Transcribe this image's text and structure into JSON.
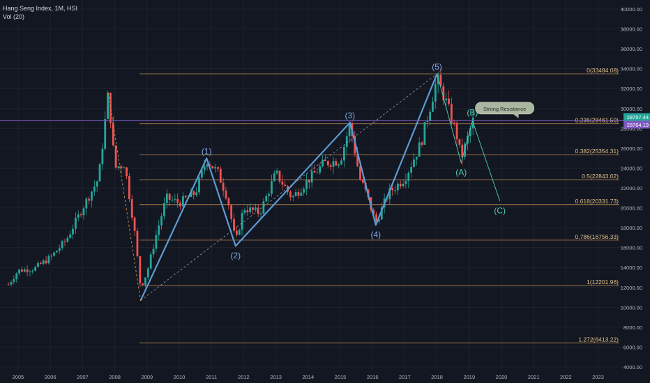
{
  "legend": {
    "symbol": "Hang Seng Index, 1M, HSI",
    "indicator": "Vol (20)"
  },
  "chart_data": {
    "type": "candlestick",
    "ylim": [
      4000,
      40000
    ],
    "xlim": [
      2004.7,
      2023.7
    ],
    "y_ticks": [
      4000,
      6000,
      8000,
      10000,
      12000,
      14000,
      16000,
      18000,
      20000,
      22000,
      24000,
      26000,
      28000,
      30000,
      32000,
      34000,
      36000,
      38000,
      40000
    ],
    "y_tick_labels": [
      "4000.00",
      "6000.00",
      "8000.00",
      "10000.00",
      "12000.00",
      "14000.00",
      "16000.00",
      "18000.00",
      "20000.00",
      "22000.00",
      "24000.00",
      "26000.00",
      "28000.00",
      "30000.00",
      "32000.00",
      "34000.00",
      "36000.00",
      "38000.00",
      "40000.00"
    ],
    "x_ticks": [
      2005,
      2006,
      2007,
      2008,
      2009,
      2010,
      2011,
      2012,
      2013,
      2014,
      2015,
      2016,
      2017,
      2018,
      2019,
      2020,
      2021,
      2022,
      2023
    ],
    "x_tick_labels": [
      "2005",
      "2006",
      "2007",
      "2008",
      "2009",
      "2010",
      "2011",
      "2012",
      "2013",
      "2014",
      "2015",
      "2016",
      "2017",
      "2018",
      "2019",
      "2020",
      "2021",
      "2022",
      "2023"
    ],
    "price_path": [
      [
        2004.7,
        12300
      ],
      [
        2005.0,
        13700
      ],
      [
        2005.5,
        13900
      ],
      [
        2006.0,
        15000
      ],
      [
        2006.5,
        16800
      ],
      [
        2007.0,
        20000
      ],
      [
        2007.5,
        23000
      ],
      [
        2007.8,
        31600
      ],
      [
        2008.0,
        24000
      ],
      [
        2008.3,
        24500
      ],
      [
        2008.6,
        18000
      ],
      [
        2008.8,
        12000
      ],
      [
        2009.0,
        13500
      ],
      [
        2009.3,
        17500
      ],
      [
        2009.6,
        21000
      ],
      [
        2010.0,
        20500
      ],
      [
        2010.5,
        21500
      ],
      [
        2010.85,
        24900
      ],
      [
        2011.2,
        23500
      ],
      [
        2011.5,
        21000
      ],
      [
        2011.75,
        16500
      ],
      [
        2012.0,
        20000
      ],
      [
        2012.5,
        19500
      ],
      [
        2013.0,
        23500
      ],
      [
        2013.5,
        21000
      ],
      [
        2014.0,
        22800
      ],
      [
        2014.5,
        24500
      ],
      [
        2015.0,
        24800
      ],
      [
        2015.3,
        28500
      ],
      [
        2015.6,
        23000
      ],
      [
        2015.8,
        21500
      ],
      [
        2016.1,
        18500
      ],
      [
        2016.5,
        21500
      ],
      [
        2017.0,
        23000
      ],
      [
        2017.5,
        26500
      ],
      [
        2018.0,
        33000
      ],
      [
        2018.3,
        30500
      ],
      [
        2018.6,
        27500
      ],
      [
        2018.75,
        25000
      ],
      [
        2019.0,
        27500
      ],
      [
        2019.1,
        28764
      ]
    ],
    "horizontal_line": {
      "value": 28764.19,
      "color": "#7e57c2"
    },
    "price_labels": [
      {
        "value": "28757.44",
        "color": "#26a69a"
      },
      {
        "value": "28764.19",
        "color": "#7e57c2"
      }
    ],
    "fib_levels": [
      {
        "value": 33484.08,
        "label": "0(33484.08)"
      },
      {
        "value": 28461.5,
        "label": "0.236(28461.50)"
      },
      {
        "value": 25354.31,
        "label": "0.382(25354.31)"
      },
      {
        "value": 22843.02,
        "label": "0.5(22843.02)"
      },
      {
        "value": 20331.73,
        "label": "0.618(20331.73)"
      },
      {
        "value": 16756.33,
        "label": "0.786(16756.33)"
      },
      {
        "value": 12201.96,
        "label": "1(12201.96)"
      },
      {
        "value": 6413.22,
        "label": "1.272(6413.22)"
      }
    ],
    "fib_color": "#e0a15a",
    "wave_points": [
      {
        "label": "",
        "x": 2008.8,
        "y": 10676
      },
      {
        "label": "(1)",
        "x": 2010.85,
        "y": 24988
      },
      {
        "label": "(2)",
        "x": 2011.75,
        "y": 16170
      },
      {
        "label": "(3)",
        "x": 2015.3,
        "y": 28588
      },
      {
        "label": "(4)",
        "x": 2016.1,
        "y": 18278
      },
      {
        "label": "(5)",
        "x": 2018.0,
        "y": 33484
      }
    ],
    "correction_points": [
      {
        "label": "(A)",
        "x": 2018.75,
        "y": 24540
      },
      {
        "label": "(B)",
        "x": 2019.1,
        "y": 28764
      },
      {
        "label": "(C)",
        "x": 2019.95,
        "y": 20700
      }
    ],
    "wave_color": "#5b9bd5",
    "correction_color": "#4fd1b0",
    "callout": {
      "text": "Strong Resistance",
      "x": 2020.1,
      "y": 30000
    }
  }
}
